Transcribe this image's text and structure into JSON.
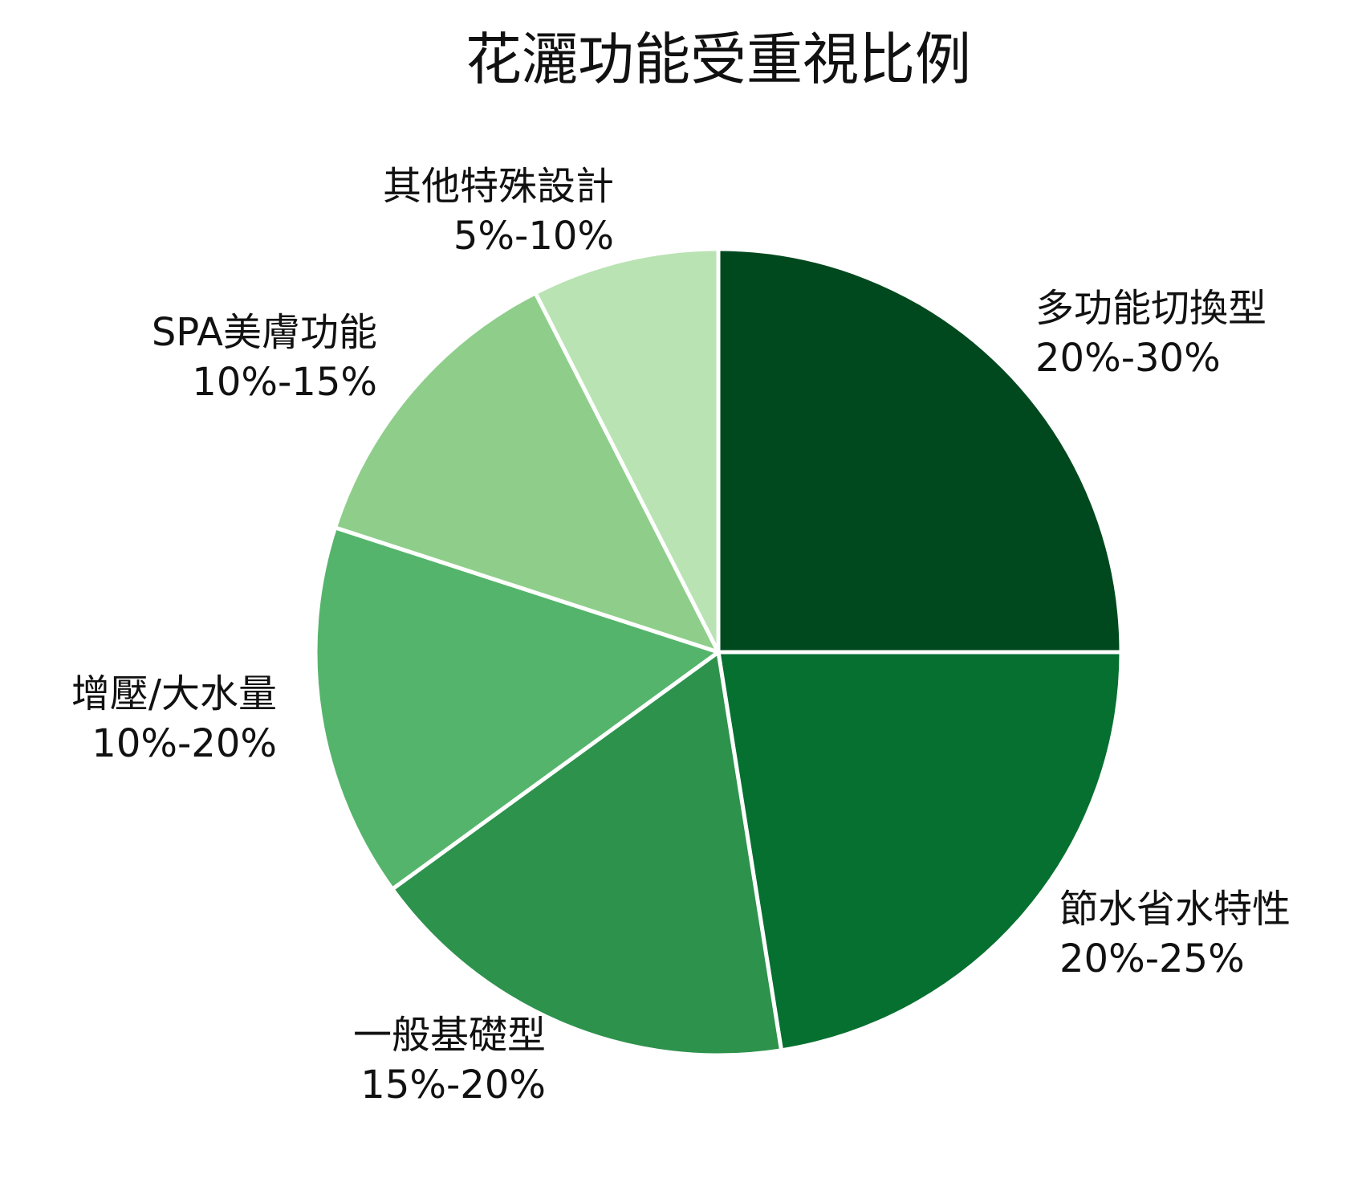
{
  "chart_data": {
    "type": "pie",
    "title": "花灑功能受重視比例",
    "start": "12 o'clock, clockwise",
    "slices": [
      {
        "name": "多功能切換型",
        "range": "20%-30%",
        "value": 25.0,
        "color": "#00491e"
      },
      {
        "name": "節水省水特性",
        "range": "20%-25%",
        "value": 22.5,
        "color": "#067030"
      },
      {
        "name": "一般基礎型",
        "range": "15%-20%",
        "value": 17.5,
        "color": "#2d924c"
      },
      {
        "name": "增壓/大水量",
        "range": "10%-20%",
        "value": 15.0,
        "color": "#55b46b"
      },
      {
        "name": "SPA美膚功能",
        "range": "10%-15%",
        "value": 12.5,
        "color": "#8ece8a"
      },
      {
        "name": "其他特殊設計",
        "range": "5%-10%",
        "value": 7.5,
        "color": "#b9e3b3"
      }
    ]
  }
}
